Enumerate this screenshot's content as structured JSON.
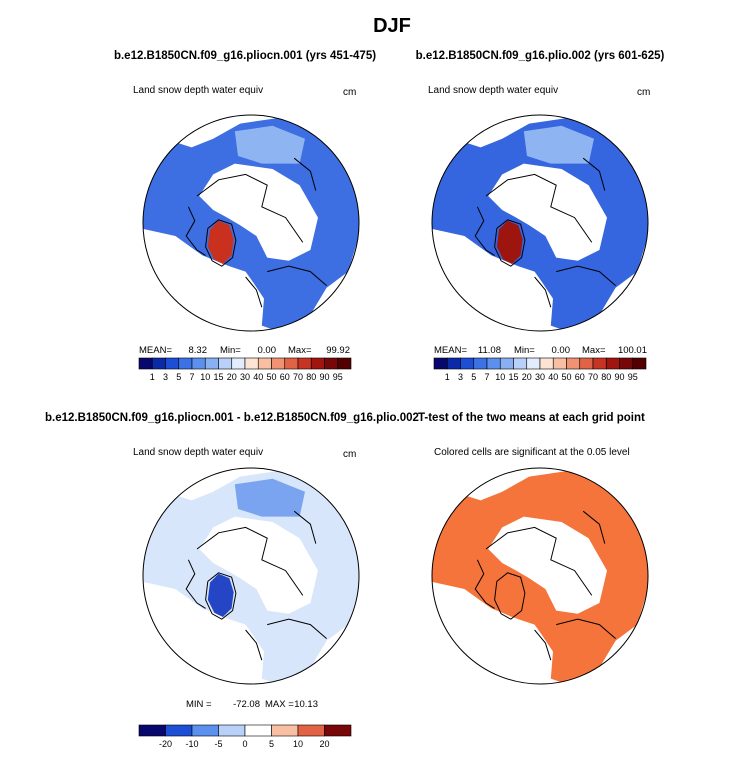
{
  "figure_title": "DJF",
  "colors": {
    "continent_outline": "#000000",
    "interior_land": "#ffffff",
    "sig_fill": "#f4743b"
  },
  "chart_data": [
    {
      "type": "heatmap",
      "subtype": "polar-stereographic map",
      "title": "b.e12.B1850CN.f09_g16.pliocn.001 (yrs 451-475)",
      "left_label": "Land snow depth water equiv",
      "units": "cm",
      "stats": {
        "mean_label": "MEAN=",
        "mean": "8.32",
        "min_label": "Min=",
        "min": "0.00",
        "max_label": "Max=",
        "max": "99.92"
      },
      "colorbar": {
        "levels": [
          "1",
          "3",
          "5",
          "7",
          "10",
          "15",
          "20",
          "30",
          "40",
          "50",
          "60",
          "70",
          "80",
          "90",
          "95"
        ],
        "colors": [
          "#08076d",
          "#0a2aa8",
          "#1d4fd6",
          "#3b73e6",
          "#5c90ee",
          "#88b0f3",
          "#b9d1f8",
          "#e2ecfc",
          "#fde3d3",
          "#f9bfa2",
          "#f19372",
          "#e26245",
          "#c83423",
          "#a1140f",
          "#780707",
          "#520000"
        ]
      },
      "regions": {
        "ocean_color": "#ffffff",
        "land_main_color": "#3d6ee2",
        "land_light_color": "#8fb4f2",
        "greenland_color": "#c9301e"
      }
    },
    {
      "type": "heatmap",
      "subtype": "polar-stereographic map",
      "title": "b.e12.B1850CN.f09_g16.plio.002 (yrs 601-625)",
      "left_label": "Land snow depth water equiv",
      "units": "cm",
      "stats": {
        "mean_label": "MEAN=",
        "mean": "11.08",
        "min_label": "Min=",
        "min": "0.00",
        "max_label": "Max=",
        "max": "100.01"
      },
      "colorbar": {
        "levels": [
          "1",
          "3",
          "5",
          "7",
          "10",
          "15",
          "20",
          "30",
          "40",
          "50",
          "60",
          "70",
          "80",
          "90",
          "95"
        ],
        "colors": [
          "#08076d",
          "#0a2aa8",
          "#1d4fd6",
          "#3b73e6",
          "#5c90ee",
          "#88b0f3",
          "#b9d1f8",
          "#e2ecfc",
          "#fde3d3",
          "#f9bfa2",
          "#f19372",
          "#e26245",
          "#c83423",
          "#a1140f",
          "#780707",
          "#520000"
        ]
      },
      "regions": {
        "ocean_color": "#ffffff",
        "land_main_color": "#3566df",
        "land_light_color": "#8fb4f2",
        "greenland_color": "#9e150f"
      }
    },
    {
      "type": "heatmap",
      "subtype": "polar-stereographic map (difference)",
      "title": "b.e12.B1850CN.f09_g16.pliocn.001 - b.e12.B1850CN.f09_g16.plio.002",
      "left_label": "Land snow depth water equiv",
      "units": "cm",
      "stats": {
        "min_label": "MIN =",
        "min": "-72.08",
        "max_label": "MAX =",
        "max": "10.13"
      },
      "colorbar": {
        "levels": [
          "-20",
          "-10",
          "-5",
          "0",
          "5",
          "10",
          "20"
        ],
        "colors": [
          "#08076d",
          "#1d4fd6",
          "#5c90ee",
          "#b9d1f8",
          "#ffffff",
          "#f9bfa2",
          "#e26245",
          "#780707"
        ]
      },
      "regions": {
        "ocean_color": "#ffffff",
        "land_main_color": "#d7e6fb",
        "land_light_color": "#7aa4ef",
        "greenland_color": "#2546c4"
      }
    },
    {
      "type": "heatmap",
      "subtype": "polar-stereographic significance map",
      "title": "T-test of the two means at each grid point",
      "left_label": "Colored cells are significant at the 0.05 level",
      "units": "",
      "regions": {
        "ocean_color": "#ffffff",
        "land_main_color": "#f4743b",
        "land_light_color": "#f4743b",
        "greenland_color": "#f4743b"
      }
    }
  ]
}
